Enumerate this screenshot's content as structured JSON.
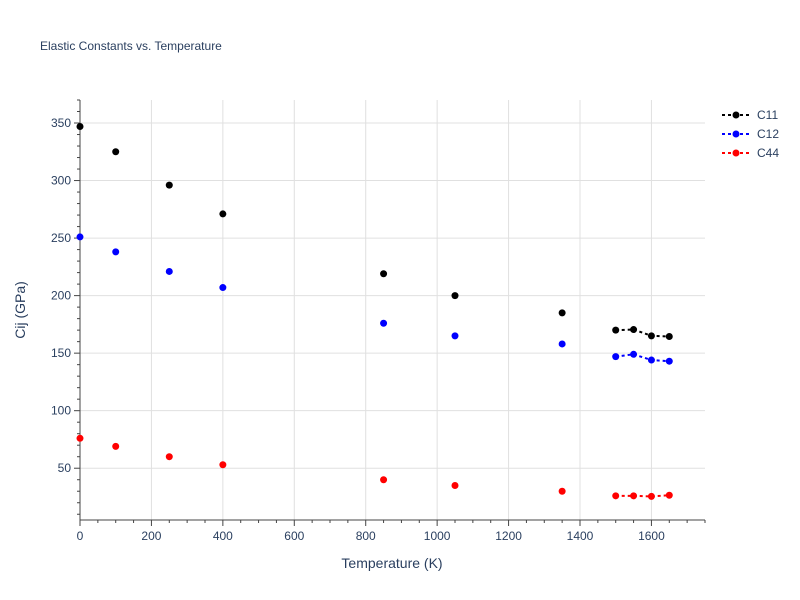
{
  "chart_data": {
    "type": "scatter",
    "title": "Elastic Constants vs. Temperature",
    "xlabel": "Temperature (K)",
    "ylabel": "Cij (GPa)",
    "xlim": [
      0,
      1750
    ],
    "ylim": [
      5,
      370
    ],
    "x_ticks": [
      0,
      200,
      400,
      600,
      800,
      1000,
      1200,
      1400,
      1600
    ],
    "y_ticks": [
      50,
      100,
      150,
      200,
      250,
      300,
      350
    ],
    "grid": true,
    "legend_position": "top-right",
    "series": [
      {
        "name": "C11",
        "color": "#000000",
        "points": [
          [
            0,
            347
          ],
          [
            100,
            325
          ],
          [
            250,
            296
          ],
          [
            400,
            271
          ],
          [
            850,
            219
          ],
          [
            1050,
            200
          ],
          [
            1350,
            185
          ]
        ],
        "line_points": [
          [
            1500,
            170
          ],
          [
            1550,
            170.5
          ],
          [
            1600,
            165
          ],
          [
            1650,
            164.5
          ]
        ]
      },
      {
        "name": "C12",
        "color": "#0000ff",
        "points": [
          [
            0,
            251
          ],
          [
            100,
            238
          ],
          [
            250,
            221
          ],
          [
            400,
            207
          ],
          [
            850,
            176
          ],
          [
            1050,
            165
          ],
          [
            1350,
            158
          ]
        ],
        "line_points": [
          [
            1500,
            147
          ],
          [
            1550,
            149
          ],
          [
            1600,
            144
          ],
          [
            1650,
            143
          ]
        ]
      },
      {
        "name": "C44",
        "color": "#ff0000",
        "points": [
          [
            0,
            76
          ],
          [
            100,
            69
          ],
          [
            250,
            60
          ],
          [
            400,
            53
          ],
          [
            850,
            40
          ],
          [
            1050,
            35
          ],
          [
            1350,
            30
          ]
        ],
        "line_points": [
          [
            1500,
            26
          ],
          [
            1550,
            26
          ],
          [
            1600,
            25.5
          ],
          [
            1650,
            26.5
          ]
        ]
      }
    ]
  }
}
